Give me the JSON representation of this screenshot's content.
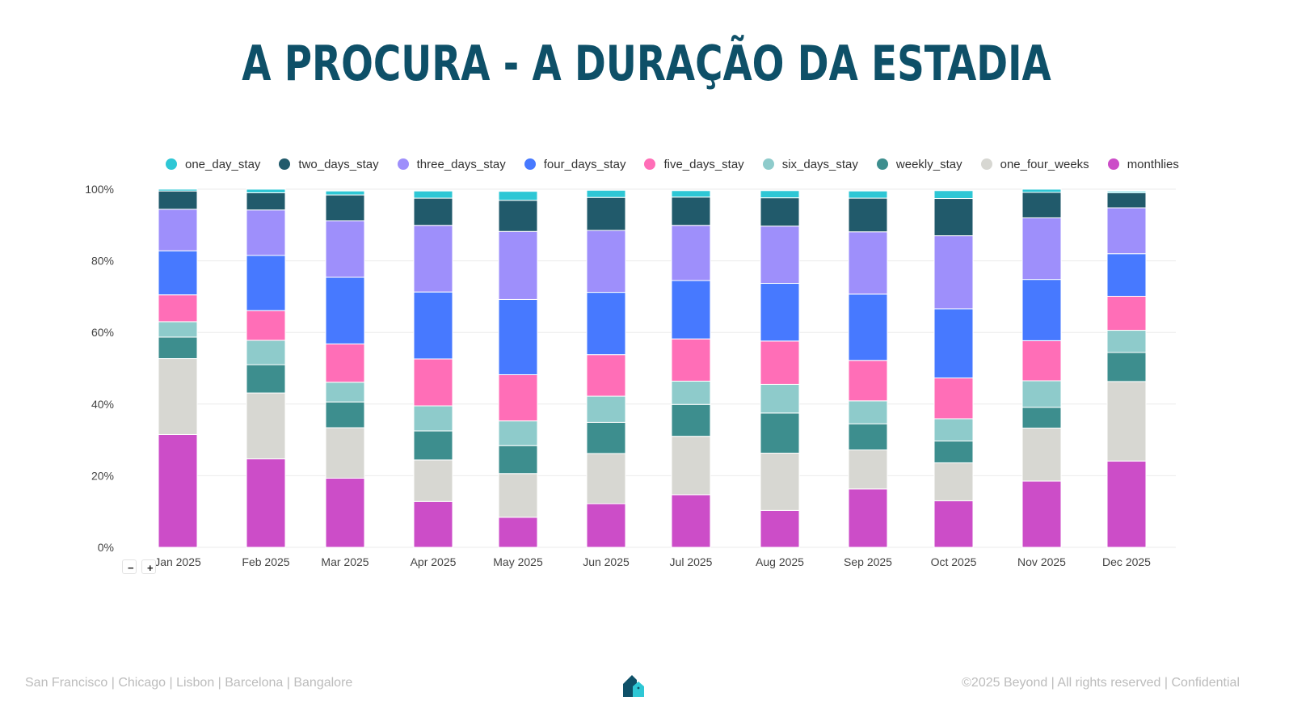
{
  "title": "A PROCURA - A DURAÇÃO DA ESTADIA",
  "colors": {
    "title": "#0e5068",
    "grid": "#ebebeb",
    "axis_text": "#444444"
  },
  "zoom": {
    "minus": "−",
    "plus": "+"
  },
  "footer": {
    "locations": "San Francisco | Chicago | Lisbon | Barcelona | Bangalore",
    "copyright": "©2025 Beyond | All rights reserved | Confidential",
    "logo_icon": "house-logo-icon"
  },
  "chart_data": {
    "type": "bar",
    "stacked": true,
    "title": "A PROCURA - A DURAÇÃO DA ESTADIA",
    "xlabel": "",
    "ylabel": "",
    "ylim": [
      0,
      100
    ],
    "y_ticks": [
      "0%",
      "20%",
      "40%",
      "60%",
      "80%",
      "100%"
    ],
    "legend_position": "top",
    "grid": true,
    "categories": [
      "Jan 2025",
      "Feb 2025",
      "Mar 2025",
      "Apr 2025",
      "May 2025",
      "Jun 2025",
      "Jul 2025",
      "Aug 2025",
      "Sep 2025",
      "Oct 2025",
      "Nov 2025",
      "Dec 2025"
    ],
    "series": [
      {
        "name": "monthlies",
        "color": "#cc4dc8",
        "values": [
          31.5,
          24.7,
          19.3,
          12.8,
          8.4,
          12.2,
          14.7,
          10.3,
          16.3,
          13.0,
          18.5,
          24.1
        ]
      },
      {
        "name": "one_four_weeks",
        "color": "#d7d7d2",
        "values": [
          21.2,
          18.4,
          14.1,
          11.6,
          12.2,
          14.0,
          16.3,
          16.0,
          10.9,
          10.6,
          14.8,
          22.2
        ]
      },
      {
        "name": "weekly_stay",
        "color": "#3d8e8e",
        "values": [
          6.0,
          7.9,
          7.2,
          8.1,
          7.8,
          8.7,
          8.9,
          11.2,
          7.3,
          6.1,
          5.8,
          8.1
        ]
      },
      {
        "name": "six_days_stay",
        "color": "#8ecbcb",
        "values": [
          4.3,
          6.8,
          5.5,
          7.0,
          6.9,
          7.3,
          6.5,
          8.0,
          6.4,
          6.2,
          7.4,
          6.2
        ]
      },
      {
        "name": "five_days_stay",
        "color": "#ff6eb7",
        "values": [
          7.5,
          8.3,
          10.7,
          13.1,
          12.9,
          11.6,
          11.8,
          12.1,
          11.3,
          11.4,
          11.2,
          9.5
        ]
      },
      {
        "name": "four_days_stay",
        "color": "#4779ff",
        "values": [
          12.3,
          15.4,
          18.6,
          18.7,
          21.0,
          17.4,
          16.3,
          16.1,
          18.5,
          19.3,
          17.1,
          11.9
        ]
      },
      {
        "name": "three_days_stay",
        "color": "#9e8ffb",
        "values": [
          11.6,
          12.7,
          15.8,
          18.6,
          19.0,
          17.3,
          15.4,
          16.0,
          17.4,
          20.4,
          17.2,
          12.8
        ]
      },
      {
        "name": "two_days_stay",
        "color": "#215a6b",
        "values": [
          5.1,
          4.8,
          7.2,
          7.6,
          8.7,
          9.2,
          7.9,
          7.9,
          9.4,
          10.4,
          7.1,
          4.2
        ]
      },
      {
        "name": "one_day_stay",
        "color": "#2ec7d5",
        "values": [
          0.5,
          1.0,
          1.1,
          2.0,
          2.5,
          2.0,
          1.8,
          2.0,
          2.0,
          2.2,
          0.9,
          0.4
        ]
      }
    ],
    "legend_order": [
      "one_day_stay",
      "two_days_stay",
      "three_days_stay",
      "four_days_stay",
      "five_days_stay",
      "six_days_stay",
      "weekly_stay",
      "one_four_weeks",
      "monthlies"
    ]
  }
}
